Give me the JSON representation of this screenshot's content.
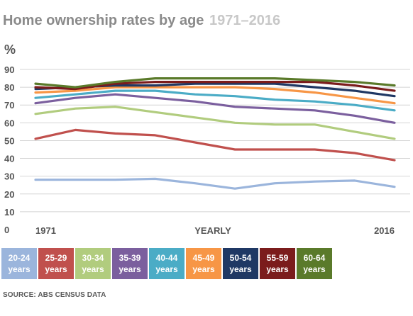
{
  "header": {
    "title": "Home ownership rates by age",
    "subtitle": "1971–2016",
    "unit": "%"
  },
  "source": "SOURCE: ABS CENSUS DATA",
  "chart_data": {
    "type": "line",
    "title": "Home ownership rates by age",
    "subtitle": "1971–2016",
    "ylabel": "%",
    "xlabel": "YEARLY",
    "ylim": [
      0,
      90
    ],
    "yticks": [
      "0",
      "10",
      "20",
      "30",
      "40",
      "50",
      "60",
      "70",
      "80",
      "90"
    ],
    "xtick_labels": [
      "1971",
      "YEARLY",
      "2016"
    ],
    "x": [
      1971,
      1976,
      1981,
      1986,
      1991,
      1996,
      2001,
      2006,
      2011,
      2016
    ],
    "grid": true,
    "series": [
      {
        "name": "20-24 years",
        "color": "#9bb5dc",
        "values": [
          28,
          28,
          28,
          28.5,
          26,
          23,
          26,
          27,
          27.5,
          24
        ]
      },
      {
        "name": "25-29 years",
        "color": "#c0504d",
        "values": [
          51,
          56,
          54,
          53,
          49,
          45,
          45,
          45,
          43,
          39
        ]
      },
      {
        "name": "30-34 years",
        "color": "#b1cc7e",
        "values": [
          65,
          68,
          69,
          66,
          63,
          60,
          59,
          59,
          55,
          51
        ]
      },
      {
        "name": "35-39 years",
        "color": "#7b5f9e",
        "values": [
          71,
          74,
          76,
          74,
          72,
          69,
          68,
          67,
          64,
          60
        ]
      },
      {
        "name": "40-44 years",
        "color": "#4bacc6",
        "values": [
          74,
          76,
          78,
          78,
          76,
          75,
          73,
          72,
          70,
          67
        ]
      },
      {
        "name": "45-49 years",
        "color": "#f79646",
        "values": [
          77,
          78,
          80,
          80,
          80,
          80,
          79,
          77,
          74,
          71
        ]
      },
      {
        "name": "50-54 years",
        "color": "#1f3864",
        "values": [
          79,
          80,
          81,
          81,
          82,
          82,
          82,
          80,
          78,
          75
        ]
      },
      {
        "name": "55-59 years",
        "color": "#7b1c1c",
        "values": [
          80,
          79,
          82,
          83,
          83,
          83,
          83,
          83,
          81,
          78
        ]
      },
      {
        "name": "60-64 years",
        "color": "#5a7a2a",
        "values": [
          82,
          80,
          83,
          85,
          85,
          85,
          85,
          84,
          83,
          81
        ]
      }
    ]
  }
}
